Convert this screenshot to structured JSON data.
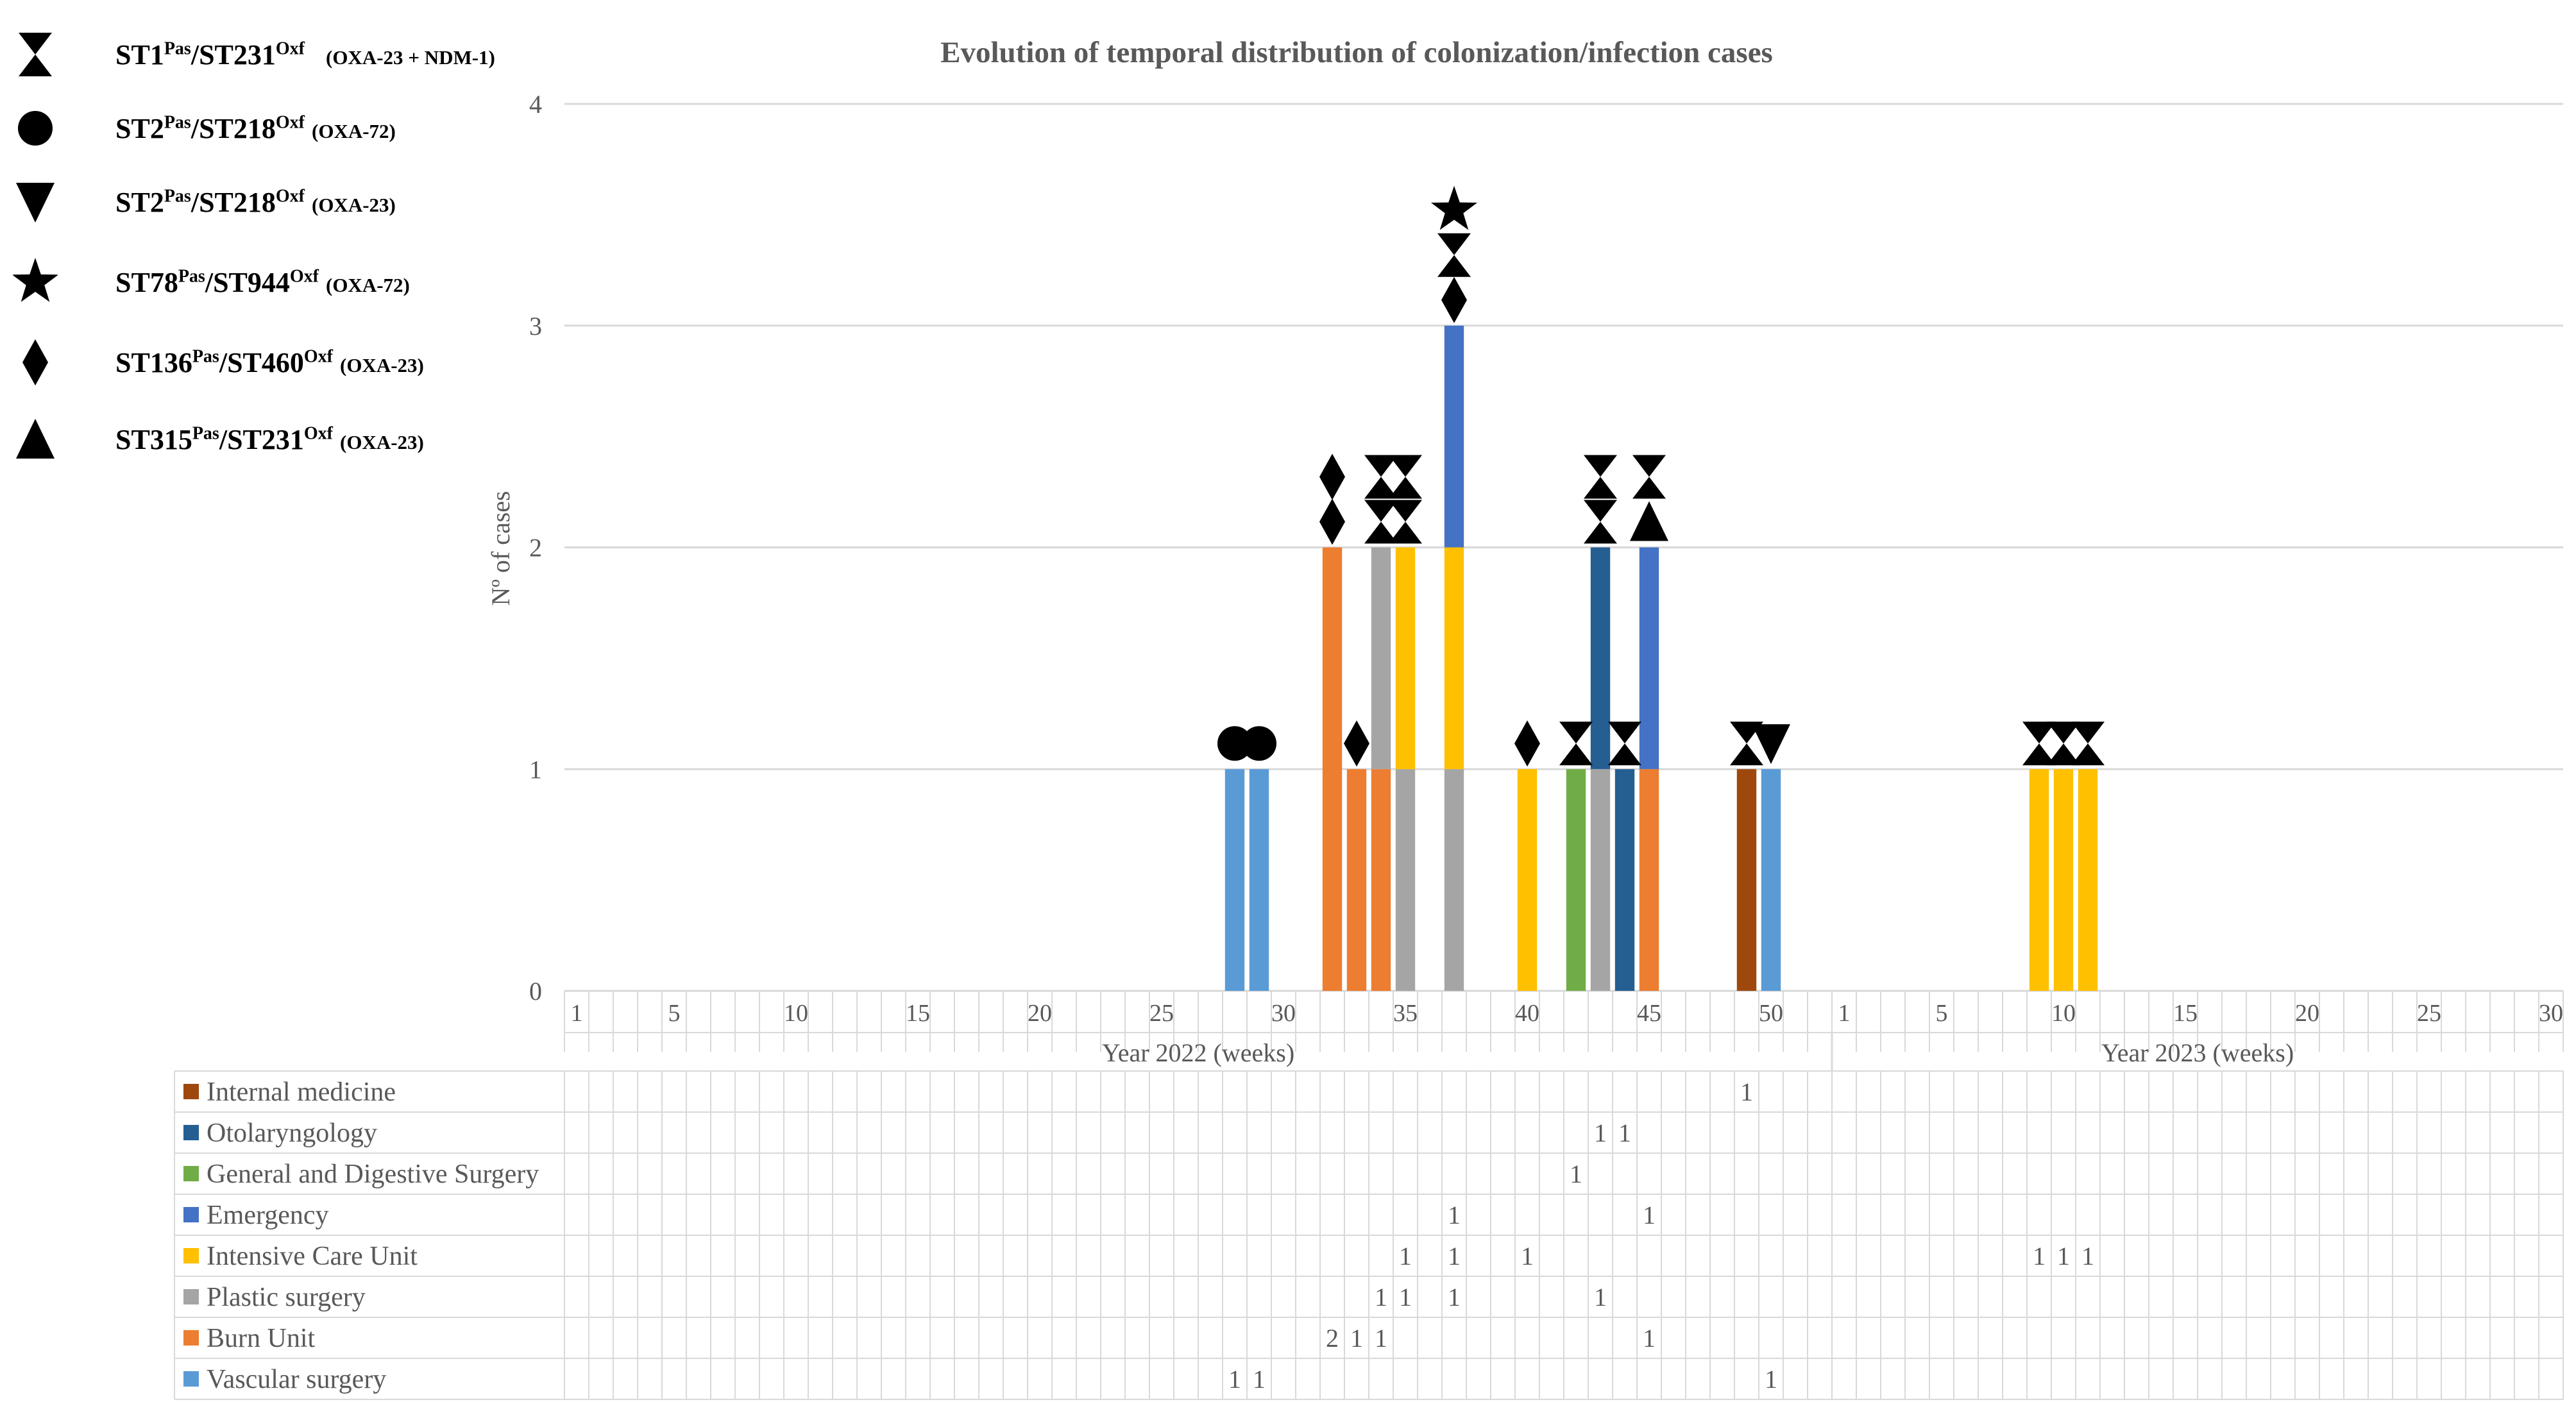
{
  "chart_data": {
    "type": "bar",
    "title": "Evolution of temporal distribution of colonization/infection cases",
    "ylabel": "Nº of cases",
    "ylim": [
      0,
      4
    ],
    "yticks": [
      "0",
      "1",
      "2",
      "3",
      "4"
    ],
    "x_groups": [
      {
        "label": "Year 2022 (weeks)",
        "weeks": 52,
        "tick_labels": [
          "1",
          "5",
          "10",
          "15",
          "20",
          "25",
          "30",
          "35",
          "40",
          "45",
          "50"
        ]
      },
      {
        "label": "Year 2023 (weeks)",
        "weeks": 30,
        "tick_labels": [
          "1",
          "5",
          "10",
          "15",
          "20",
          "25",
          "30"
        ]
      }
    ],
    "series": [
      {
        "name": "Internal medicine",
        "color": "#9E480E",
        "points": [
          {
            "year": 2022,
            "week": 49,
            "value": 1
          }
        ]
      },
      {
        "name": "Otolaryngology",
        "color": "#255E91",
        "points": [
          {
            "year": 2022,
            "week": 43,
            "value": 1
          },
          {
            "year": 2022,
            "week": 44,
            "value": 1
          }
        ]
      },
      {
        "name": "General and Digestive Surgery",
        "color": "#70AD47",
        "points": [
          {
            "year": 2022,
            "week": 42,
            "value": 1
          }
        ]
      },
      {
        "name": "Emergency",
        "color": "#4472C4",
        "points": [
          {
            "year": 2022,
            "week": 37,
            "value": 1
          },
          {
            "year": 2022,
            "week": 45,
            "value": 1
          }
        ]
      },
      {
        "name": "Intensive Care Unit",
        "color": "#FFC000",
        "points": [
          {
            "year": 2022,
            "week": 35,
            "value": 1
          },
          {
            "year": 2022,
            "week": 37,
            "value": 1
          },
          {
            "year": 2022,
            "week": 40,
            "value": 1
          },
          {
            "year": 2023,
            "week": 9,
            "value": 1
          },
          {
            "year": 2023,
            "week": 10,
            "value": 1
          },
          {
            "year": 2023,
            "week": 11,
            "value": 1
          }
        ]
      },
      {
        "name": "Plastic surgery",
        "color": "#A5A5A5",
        "points": [
          {
            "year": 2022,
            "week": 34,
            "value": 1
          },
          {
            "year": 2022,
            "week": 35,
            "value": 1
          },
          {
            "year": 2022,
            "week": 37,
            "value": 1
          },
          {
            "year": 2022,
            "week": 43,
            "value": 1
          }
        ]
      },
      {
        "name": "Burn Unit",
        "color": "#ED7D31",
        "points": [
          {
            "year": 2022,
            "week": 32,
            "value": 2
          },
          {
            "year": 2022,
            "week": 33,
            "value": 1
          },
          {
            "year": 2022,
            "week": 34,
            "value": 1
          },
          {
            "year": 2022,
            "week": 45,
            "value": 1
          }
        ]
      },
      {
        "name": "Vascular surgery",
        "color": "#5B9BD5",
        "points": [
          {
            "year": 2022,
            "week": 28,
            "value": 1
          },
          {
            "year": 2022,
            "week": 29,
            "value": 1
          },
          {
            "year": 2022,
            "week": 50,
            "value": 1
          }
        ]
      }
    ],
    "stack_order": [
      "Vascular surgery",
      "Burn Unit",
      "Plastic surgery",
      "Intensive Care Unit",
      "General and Digestive Surgery",
      "Otolaryngology",
      "Emergency",
      "Internal medicine"
    ],
    "markers": [
      {
        "year": 2022,
        "week": 28,
        "symbols": [
          "circle"
        ]
      },
      {
        "year": 2022,
        "week": 29,
        "symbols": [
          "circle"
        ]
      },
      {
        "year": 2022,
        "week": 32,
        "symbols": [
          "diamond",
          "diamond"
        ]
      },
      {
        "year": 2022,
        "week": 33,
        "symbols": [
          "diamond"
        ]
      },
      {
        "year": 2022,
        "week": 34,
        "symbols": [
          "hourglass",
          "hourglass"
        ]
      },
      {
        "year": 2022,
        "week": 35,
        "symbols": [
          "hourglass",
          "hourglass"
        ]
      },
      {
        "year": 2022,
        "week": 37,
        "symbols": [
          "diamond",
          "hourglass",
          "star"
        ]
      },
      {
        "year": 2022,
        "week": 40,
        "symbols": [
          "diamond"
        ]
      },
      {
        "year": 2022,
        "week": 42,
        "symbols": [
          "hourglass"
        ]
      },
      {
        "year": 2022,
        "week": 43,
        "symbols": [
          "hourglass",
          "hourglass"
        ]
      },
      {
        "year": 2022,
        "week": 44,
        "symbols": [
          "hourglass"
        ]
      },
      {
        "year": 2022,
        "week": 45,
        "symbols": [
          "triangle-up",
          "hourglass"
        ]
      },
      {
        "year": 2022,
        "week": 49,
        "symbols": [
          "hourglass"
        ]
      },
      {
        "year": 2022,
        "week": 50,
        "symbols": [
          "triangle-down"
        ]
      },
      {
        "year": 2023,
        "week": 9,
        "symbols": [
          "hourglass"
        ]
      },
      {
        "year": 2023,
        "week": 10,
        "symbols": [
          "hourglass"
        ]
      },
      {
        "year": 2023,
        "week": 11,
        "symbols": [
          "hourglass"
        ]
      }
    ],
    "table_rows": [
      "Internal medicine",
      "Otolaryngology",
      "General and Digestive Surgery",
      "Emergency",
      "Intensive Care Unit",
      "Plastic surgery",
      "Burn Unit",
      "Vascular surgery"
    ]
  },
  "legend": [
    {
      "symbol": "hourglass",
      "pas": "ST1",
      "pas_sup": "Pas",
      "oxf": "ST231",
      "oxf_sup": "Oxf",
      "note": "(OXA-23 + NDM-1)"
    },
    {
      "symbol": "circle",
      "pas": "ST2",
      "pas_sup": "Pas",
      "oxf": "ST218",
      "oxf_sup": "Oxf",
      "note": "(OXA-72)"
    },
    {
      "symbol": "triangle-down",
      "pas": "ST2",
      "pas_sup": "Pas",
      "oxf": "ST218",
      "oxf_sup": "Oxf",
      "note": "(OXA-23)"
    },
    {
      "symbol": "star",
      "pas": "ST78",
      "pas_sup": "Pas",
      "oxf": "ST944",
      "oxf_sup": "Oxf",
      "note": "(OXA-72)"
    },
    {
      "symbol": "diamond",
      "pas": "ST136",
      "pas_sup": "Pas",
      "oxf": "ST460",
      "oxf_sup": "Oxf",
      "note": "(OXA-23)"
    },
    {
      "symbol": "triangle-up",
      "pas": "ST315",
      "pas_sup": "Pas",
      "oxf": "ST231",
      "oxf_sup": "Oxf",
      "note": "(OXA-23)"
    }
  ]
}
